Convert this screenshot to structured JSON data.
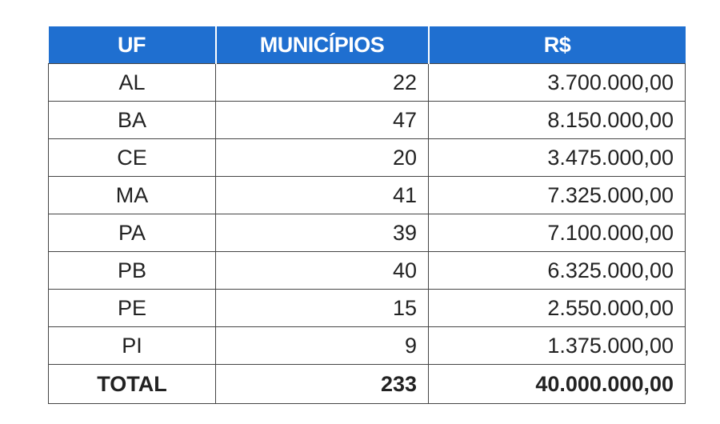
{
  "header": {
    "uf": "UF",
    "municipios": "MUNICÍPIOS",
    "valor": "R$"
  },
  "rows": [
    {
      "uf": "AL",
      "municipios": "22",
      "valor": "3.700.000,00"
    },
    {
      "uf": "BA",
      "municipios": "47",
      "valor": "8.150.000,00"
    },
    {
      "uf": "CE",
      "municipios": "20",
      "valor": "3.475.000,00"
    },
    {
      "uf": "MA",
      "municipios": "41",
      "valor": "7.325.000,00"
    },
    {
      "uf": "PA",
      "municipios": "39",
      "valor": "7.100.000,00"
    },
    {
      "uf": "PB",
      "municipios": "40",
      "valor": "6.325.000,00"
    },
    {
      "uf": "PE",
      "municipios": "15",
      "valor": "2.550.000,00"
    },
    {
      "uf": "PI",
      "municipios": "9",
      "valor": "1.375.000,00"
    }
  ],
  "total": {
    "label": "TOTAL",
    "municipios": "233",
    "valor": "40.000.000,00"
  },
  "colors": {
    "header_bg": "#1f6fd0",
    "header_text": "#ffffff",
    "border": "#444444"
  }
}
